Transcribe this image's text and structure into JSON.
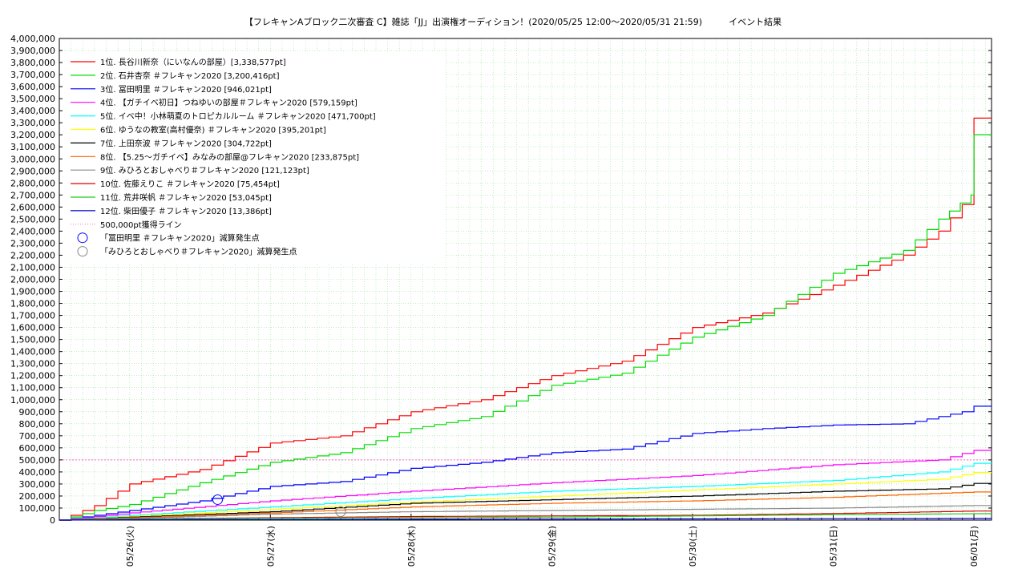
{
  "title": "【フレキャンAブロック二次審査 C】雑誌「JJ」出演権オーディション！(2020/05/25 12:00〜2020/05/31 21:59)　　　イベント結果",
  "chart_data": {
    "type": "line",
    "title": "【フレキャンAブロック二次審査 C】雑誌「JJ」出演権オーディション！(2020/05/25 12:00〜2020/05/31 21:59)　　　イベント結果",
    "xlabel": "",
    "ylabel": "",
    "x_range": [
      "2020-05-25 12:00",
      "2020-06-01 03:00"
    ],
    "ylim": [
      0,
      4000000
    ],
    "y_tick_step": 100000,
    "x_ticks": [
      "05/26(火)",
      "05/27(水)",
      "05/28(木)",
      "05/29(金)",
      "05/30(土)",
      "05/31(日)",
      "06/01(月)"
    ],
    "grid": true,
    "legend_position": "top-left",
    "series": [
      {
        "name": "1位. 長谷川新奈（にいなんの部屋）[3,338,577pt]",
        "color": "#ff0000",
        "points": [
          [
            "05/25 12:00",
            0
          ],
          [
            "05/25 18:00",
            120000
          ],
          [
            "05/26 00:00",
            300000
          ],
          [
            "05/26 12:00",
            420000
          ],
          [
            "05/27 00:00",
            640000
          ],
          [
            "05/27 12:00",
            700000
          ],
          [
            "05/28 00:00",
            900000
          ],
          [
            "05/28 12:00",
            1000000
          ],
          [
            "05/29 00:00",
            1200000
          ],
          [
            "05/29 12:00",
            1320000
          ],
          [
            "05/30 00:00",
            1600000
          ],
          [
            "05/30 12:00",
            1720000
          ],
          [
            "05/31 00:00",
            1950000
          ],
          [
            "05/31 12:00",
            2200000
          ],
          [
            "05/31 18:00",
            2400000
          ],
          [
            "05/31 22:00",
            2620000
          ],
          [
            "06/01 00:00",
            3338577
          ],
          [
            "06/01 03:00",
            3338577
          ]
        ]
      },
      {
        "name": "2位. 石井杏奈 ＃フレキャン2020 [3,200,416pt]",
        "color": "#00dd00",
        "points": [
          [
            "05/25 12:00",
            0
          ],
          [
            "05/25 18:00",
            80000
          ],
          [
            "05/26 00:00",
            130000
          ],
          [
            "05/26 12:00",
            310000
          ],
          [
            "05/27 00:00",
            480000
          ],
          [
            "05/27 12:00",
            560000
          ],
          [
            "05/28 00:00",
            760000
          ],
          [
            "05/28 12:00",
            860000
          ],
          [
            "05/29 00:00",
            1120000
          ],
          [
            "05/29 12:00",
            1220000
          ],
          [
            "05/30 00:00",
            1520000
          ],
          [
            "05/30 12:00",
            1700000
          ],
          [
            "05/31 00:00",
            2050000
          ],
          [
            "05/31 12:00",
            2240000
          ],
          [
            "05/31 18:00",
            2500000
          ],
          [
            "05/31 23:30",
            2700000
          ],
          [
            "06/01 00:00",
            3200416
          ],
          [
            "06/01 03:00",
            3200416
          ]
        ]
      },
      {
        "name": "3位. 冨田明里 ＃フレキャン2020 [946,021pt]",
        "color": "#0000ff",
        "points": [
          [
            "05/25 12:00",
            0
          ],
          [
            "05/26 00:00",
            80000
          ],
          [
            "05/26 12:00",
            160000
          ],
          [
            "05/27 00:00",
            280000
          ],
          [
            "05/27 12:00",
            320000
          ],
          [
            "05/28 00:00",
            430000
          ],
          [
            "05/28 12:00",
            480000
          ],
          [
            "05/29 00:00",
            560000
          ],
          [
            "05/29 12:00",
            590000
          ],
          [
            "05/30 00:00",
            720000
          ],
          [
            "05/30 12:00",
            760000
          ],
          [
            "05/31 00:00",
            790000
          ],
          [
            "05/31 12:00",
            800000
          ],
          [
            "05/31 22:00",
            900000
          ],
          [
            "06/01 00:00",
            946021
          ],
          [
            "06/01 03:00",
            946021
          ]
        ]
      },
      {
        "name": "4位. 【ガチイベ初日】つねゆいの部屋＃フレキャン2020 [579,159pt]",
        "color": "#ff00ff",
        "points": [
          [
            "05/25 12:00",
            0
          ],
          [
            "05/26 00:00",
            60000
          ],
          [
            "05/27 00:00",
            160000
          ],
          [
            "05/28 00:00",
            240000
          ],
          [
            "05/29 00:00",
            310000
          ],
          [
            "05/30 00:00",
            370000
          ],
          [
            "05/31 00:00",
            460000
          ],
          [
            "05/31 18:00",
            500000
          ],
          [
            "06/01 00:00",
            579159
          ],
          [
            "06/01 03:00",
            579159
          ]
        ]
      },
      {
        "name": "5位. イベ中！小林萌夏のトロピカルルーム ＃フレキャン2020 [471,700pt]",
        "color": "#00ffff",
        "points": [
          [
            "05/25 12:00",
            0
          ],
          [
            "05/26 00:00",
            40000
          ],
          [
            "05/27 00:00",
            110000
          ],
          [
            "05/28 00:00",
            180000
          ],
          [
            "05/29 00:00",
            240000
          ],
          [
            "05/30 00:00",
            280000
          ],
          [
            "05/31 00:00",
            330000
          ],
          [
            "05/31 18:00",
            400000
          ],
          [
            "06/01 00:00",
            471700
          ],
          [
            "06/01 03:00",
            471700
          ]
        ]
      },
      {
        "name": "6位. ゆうなの教室(高村優奈) ＃フレキャン2020 [395,201pt]",
        "color": "#ffff00",
        "points": [
          [
            "05/25 12:00",
            0
          ],
          [
            "05/26 00:00",
            30000
          ],
          [
            "05/27 00:00",
            90000
          ],
          [
            "05/28 00:00",
            150000
          ],
          [
            "05/29 00:00",
            200000
          ],
          [
            "05/30 00:00",
            250000
          ],
          [
            "05/31 00:00",
            300000
          ],
          [
            "05/31 18:00",
            340000
          ],
          [
            "06/01 00:00",
            395201
          ],
          [
            "06/01 03:00",
            395201
          ]
        ]
      },
      {
        "name": "7位. 上田奈波 ＃フレキャン2020 [304,722pt]",
        "color": "#000000",
        "points": [
          [
            "05/25 12:00",
            0
          ],
          [
            "05/26 00:00",
            25000
          ],
          [
            "05/27 00:00",
            70000
          ],
          [
            "05/28 00:00",
            140000
          ],
          [
            "05/29 00:00",
            170000
          ],
          [
            "05/30 00:00",
            200000
          ],
          [
            "05/31 00:00",
            240000
          ],
          [
            "05/31 18:00",
            260000
          ],
          [
            "06/01 00:00",
            304722
          ],
          [
            "06/01 03:00",
            304722
          ]
        ]
      },
      {
        "name": "8位. 【5.25〜ガチイベ】みなみの部屋@フレキャン2020 [233,875pt]",
        "color": "#ff6600",
        "points": [
          [
            "05/25 12:00",
            0
          ],
          [
            "05/26 00:00",
            20000
          ],
          [
            "05/27 00:00",
            60000
          ],
          [
            "05/28 00:00",
            110000
          ],
          [
            "05/29 00:00",
            140000
          ],
          [
            "05/30 00:00",
            160000
          ],
          [
            "05/31 00:00",
            190000
          ],
          [
            "06/01 00:00",
            233875
          ],
          [
            "06/01 03:00",
            233875
          ]
        ]
      },
      {
        "name": "9位. みひろとおしゃべり＃フレキャン2020 [121,123pt]",
        "color": "#888888",
        "points": [
          [
            "05/25 12:00",
            0
          ],
          [
            "05/26 00:00",
            15000
          ],
          [
            "05/27 00:00",
            50000
          ],
          [
            "05/28 00:00",
            70000
          ],
          [
            "05/29 00:00",
            80000
          ],
          [
            "05/30 00:00",
            90000
          ],
          [
            "05/31 00:00",
            100000
          ],
          [
            "06/01 00:00",
            121123
          ],
          [
            "06/01 03:00",
            121123
          ]
        ]
      },
      {
        "name": "10位. 佐藤えりこ ＃フレキャン2020 [75,454pt]",
        "color": "#dd0000",
        "points": [
          [
            "05/25 12:00",
            0
          ],
          [
            "05/26 00:00",
            10000
          ],
          [
            "05/27 00:00",
            20000
          ],
          [
            "05/28 00:00",
            30000
          ],
          [
            "05/29 00:00",
            35000
          ],
          [
            "05/30 00:00",
            40000
          ],
          [
            "05/31 00:00",
            55000
          ],
          [
            "06/01 00:00",
            75454
          ],
          [
            "06/01 03:00",
            75454
          ]
        ]
      },
      {
        "name": "11位. 荒井咲帆 ＃フレキャン2020 [53,045pt]",
        "color": "#22cc22",
        "points": [
          [
            "05/25 12:00",
            0
          ],
          [
            "05/26 00:00",
            8000
          ],
          [
            "05/27 00:00",
            15000
          ],
          [
            "05/28 00:00",
            20000
          ],
          [
            "05/29 00:00",
            25000
          ],
          [
            "05/30 00:00",
            35000
          ],
          [
            "05/31 00:00",
            45000
          ],
          [
            "06/01 00:00",
            53045
          ],
          [
            "06/01 03:00",
            53045
          ]
        ]
      },
      {
        "name": "12位. 柴田優子 ＃フレキャン2020 [13,386pt]",
        "color": "#0000cc",
        "points": [
          [
            "05/25 12:00",
            0
          ],
          [
            "05/26 00:00",
            3000
          ],
          [
            "05/27 00:00",
            5000
          ],
          [
            "05/28 00:00",
            7000
          ],
          [
            "05/29 00:00",
            9000
          ],
          [
            "05/30 00:00",
            10000
          ],
          [
            "05/31 00:00",
            12000
          ],
          [
            "06/01 00:00",
            13386
          ],
          [
            "06/01 03:00",
            13386
          ]
        ]
      }
    ],
    "reference_line": {
      "name": "500,000pt獲得ライン",
      "value": 500000,
      "color": "#ff66cc"
    },
    "markers": [
      {
        "name": "「冨田明里 ＃フレキャン2020」減算発生点",
        "color": "#0000ff",
        "x": "05/26 15:00",
        "y": 170000
      },
      {
        "name": "「みひろとおしゃべり＃フレキャン2020」減算発生点",
        "color": "#888888",
        "x": "05/27 12:00",
        "y": 70000
      }
    ]
  }
}
